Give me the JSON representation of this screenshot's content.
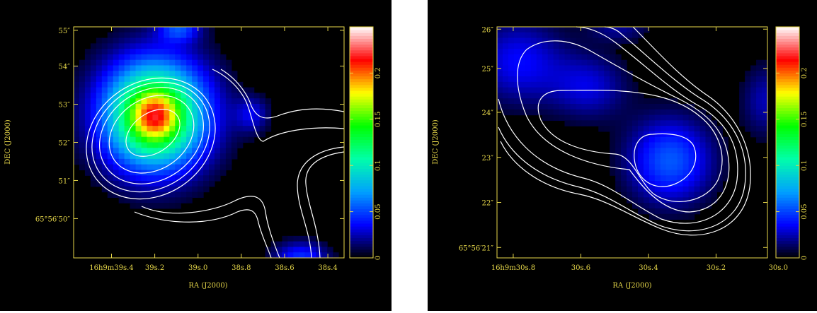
{
  "colors": {
    "background": "#000000",
    "frame": "#e7d84a",
    "contour": "#ffffff"
  },
  "colormap": [
    "#000000",
    "#0000ff",
    "#00a0ff",
    "#00ffaa",
    "#00ff00",
    "#ffff00",
    "#ff0000",
    "#ffffff"
  ],
  "chart_data": [
    {
      "type": "heatmap",
      "title": "",
      "xlabel": "RA (J2000)",
      "ylabel": "DEC (J2000)",
      "xlim": [
        0,
        1
      ],
      "ylim": [
        0,
        1
      ],
      "x_ticks": [
        {
          "label": "16h9m39s.4",
          "value": 0.14
        },
        {
          "label": "39s.2",
          "value": 0.3
        },
        {
          "label": "39s.0",
          "value": 0.46
        },
        {
          "label": "38s.8",
          "value": 0.62
        },
        {
          "label": "38s.6",
          "value": 0.78
        },
        {
          "label": "38s.4",
          "value": 0.94
        }
      ],
      "y_ticks": [
        {
          "label": "65°56′50″",
          "value": 0.17
        },
        {
          "label": "51″",
          "value": 0.335
        },
        {
          "label": "52″",
          "value": 0.5
        },
        {
          "label": "53″",
          "value": 0.665
        },
        {
          "label": "54″",
          "value": 0.83
        },
        {
          "label": "55″",
          "value": 0.985
        }
      ],
      "colorbar": {
        "min": 0,
        "max": 0.25,
        "ticks": [
          "0",
          "0.05",
          "0.1",
          "0.15",
          "0.2"
        ],
        "tick_values": [
          0,
          0.05,
          0.1,
          0.15,
          0.2
        ]
      },
      "sources": [
        {
          "x": 0.3,
          "y": 0.62,
          "sx": 0.135,
          "sy": 0.165,
          "amp": 0.16
        },
        {
          "x": 0.3,
          "y": 0.61,
          "sx": 0.06,
          "sy": 0.075,
          "amp": 0.06
        },
        {
          "x": 0.39,
          "y": 0.99,
          "sx": 0.055,
          "sy": 0.04,
          "amp": 0.045
        },
        {
          "x": 0.66,
          "y": 0.62,
          "sx": 0.045,
          "sy": 0.055,
          "amp": 0.03
        },
        {
          "x": 0.84,
          "y": 0.0,
          "sx": 0.07,
          "sy": 0.05,
          "amp": 0.045
        }
      ]
    },
    {
      "type": "heatmap",
      "title": "",
      "xlabel": "RA (J2000)",
      "ylabel": "DEC (J2000)",
      "xlim": [
        0,
        1
      ],
      "ylim": [
        0,
        1
      ],
      "x_ticks": [
        {
          "label": "16h9m30s.8",
          "value": 0.06
        },
        {
          "label": "30s.6",
          "value": 0.31
        },
        {
          "label": "30s.4",
          "value": 0.56
        },
        {
          "label": "30s.2",
          "value": 0.81
        },
        {
          "label": "30s.0",
          "value": 1.04
        }
      ],
      "y_ticks": [
        {
          "label": "65°56′21″",
          "value": 0.045
        },
        {
          "label": "22″",
          "value": 0.24
        },
        {
          "label": "23″",
          "value": 0.435
        },
        {
          "label": "24″",
          "value": 0.63
        },
        {
          "label": "25″",
          "value": 0.82
        },
        {
          "label": "26″",
          "value": 0.99
        }
      ],
      "colorbar": {
        "min": 0,
        "max": 0.25,
        "ticks": [
          "0",
          "0.05",
          "0.1",
          "0.15",
          "0.2"
        ],
        "tick_values": [
          0,
          0.05,
          0.1,
          0.15,
          0.2
        ]
      },
      "sources": [
        {
          "x": 0.64,
          "y": 0.42,
          "sx": 0.11,
          "sy": 0.13,
          "amp": 0.055
        },
        {
          "x": 0.08,
          "y": 0.85,
          "sx": 0.12,
          "sy": 0.13,
          "amp": 0.036
        },
        {
          "x": 0.34,
          "y": 0.74,
          "sx": 0.1,
          "sy": 0.1,
          "amp": 0.03
        },
        {
          "x": 0.99,
          "y": 0.68,
          "sx": 0.06,
          "sy": 0.11,
          "amp": 0.025
        },
        {
          "x": 0.45,
          "y": 0.99,
          "sx": 0.08,
          "sy": 0.04,
          "amp": 0.02
        }
      ]
    }
  ]
}
